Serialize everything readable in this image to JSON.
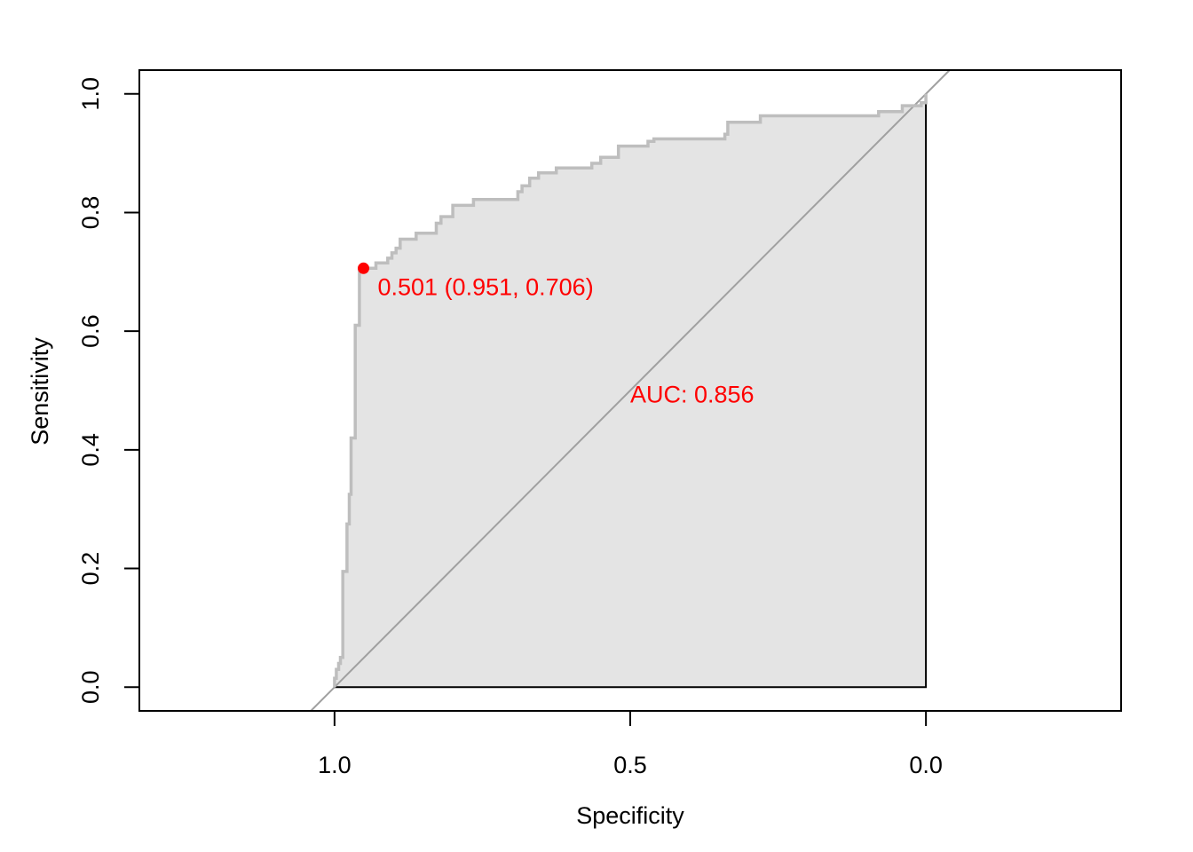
{
  "chart_data": {
    "type": "line",
    "title": "",
    "xlabel": "Specificity",
    "ylabel": "Sensitivity",
    "x_reversed": true,
    "xlim": [
      1.33,
      -0.33
    ],
    "ylim": [
      -0.04,
      1.04
    ],
    "x_ticks": [
      {
        "value": 1.0,
        "label": "1.0"
      },
      {
        "value": 0.5,
        "label": "0.5"
      },
      {
        "value": 0.0,
        "label": "0.0"
      }
    ],
    "y_ticks": [
      {
        "value": 0.0,
        "label": "0.0"
      },
      {
        "value": 0.2,
        "label": "0.2"
      },
      {
        "value": 0.4,
        "label": "0.4"
      },
      {
        "value": 0.6,
        "label": "0.6"
      },
      {
        "value": 0.8,
        "label": "0.8"
      },
      {
        "value": 1.0,
        "label": "1.0"
      }
    ],
    "grid": false,
    "auc_polygon_fill": "#e4e4e4",
    "curve_color": "#bebebe",
    "diagonal_color": "#a0a0a0",
    "annotation_color": "#ff0000",
    "roc_curve": [
      [
        1.0,
        0.0
      ],
      [
        1.0,
        0.015
      ],
      [
        0.997,
        0.015
      ],
      [
        0.997,
        0.03
      ],
      [
        0.993,
        0.03
      ],
      [
        0.993,
        0.04
      ],
      [
        0.99,
        0.04
      ],
      [
        0.99,
        0.05
      ],
      [
        0.986,
        0.05
      ],
      [
        0.986,
        0.195
      ],
      [
        0.979,
        0.195
      ],
      [
        0.979,
        0.275
      ],
      [
        0.975,
        0.275
      ],
      [
        0.975,
        0.325
      ],
      [
        0.972,
        0.325
      ],
      [
        0.972,
        0.42
      ],
      [
        0.965,
        0.42
      ],
      [
        0.965,
        0.61
      ],
      [
        0.958,
        0.61
      ],
      [
        0.958,
        0.706
      ],
      [
        0.951,
        0.706
      ],
      [
        0.93,
        0.706
      ],
      [
        0.93,
        0.715
      ],
      [
        0.91,
        0.715
      ],
      [
        0.91,
        0.723
      ],
      [
        0.903,
        0.723
      ],
      [
        0.903,
        0.732
      ],
      [
        0.896,
        0.732
      ],
      [
        0.896,
        0.74
      ],
      [
        0.889,
        0.74
      ],
      [
        0.889,
        0.755
      ],
      [
        0.862,
        0.755
      ],
      [
        0.862,
        0.765
      ],
      [
        0.828,
        0.765
      ],
      [
        0.828,
        0.782
      ],
      [
        0.82,
        0.782
      ],
      [
        0.82,
        0.793
      ],
      [
        0.8,
        0.793
      ],
      [
        0.8,
        0.812
      ],
      [
        0.765,
        0.812
      ],
      [
        0.765,
        0.822
      ],
      [
        0.69,
        0.822
      ],
      [
        0.69,
        0.835
      ],
      [
        0.683,
        0.835
      ],
      [
        0.683,
        0.845
      ],
      [
        0.67,
        0.845
      ],
      [
        0.67,
        0.858
      ],
      [
        0.655,
        0.858
      ],
      [
        0.655,
        0.867
      ],
      [
        0.625,
        0.867
      ],
      [
        0.625,
        0.875
      ],
      [
        0.565,
        0.875
      ],
      [
        0.565,
        0.883
      ],
      [
        0.55,
        0.883
      ],
      [
        0.55,
        0.893
      ],
      [
        0.52,
        0.893
      ],
      [
        0.52,
        0.912
      ],
      [
        0.47,
        0.912
      ],
      [
        0.47,
        0.92
      ],
      [
        0.46,
        0.92
      ],
      [
        0.46,
        0.924
      ],
      [
        0.34,
        0.924
      ],
      [
        0.34,
        0.932
      ],
      [
        0.335,
        0.932
      ],
      [
        0.335,
        0.952
      ],
      [
        0.28,
        0.952
      ],
      [
        0.28,
        0.963
      ],
      [
        0.08,
        0.963
      ],
      [
        0.08,
        0.97
      ],
      [
        0.04,
        0.97
      ],
      [
        0.04,
        0.98
      ],
      [
        0.008,
        0.98
      ],
      [
        0.008,
        0.985
      ],
      [
        0.0,
        0.985
      ],
      [
        0.0,
        1.0
      ]
    ],
    "threshold_point": {
      "x": 0.951,
      "y": 0.706,
      "label": "0.501 (0.951, 0.706)"
    },
    "auc_label": "AUC: 0.856"
  }
}
